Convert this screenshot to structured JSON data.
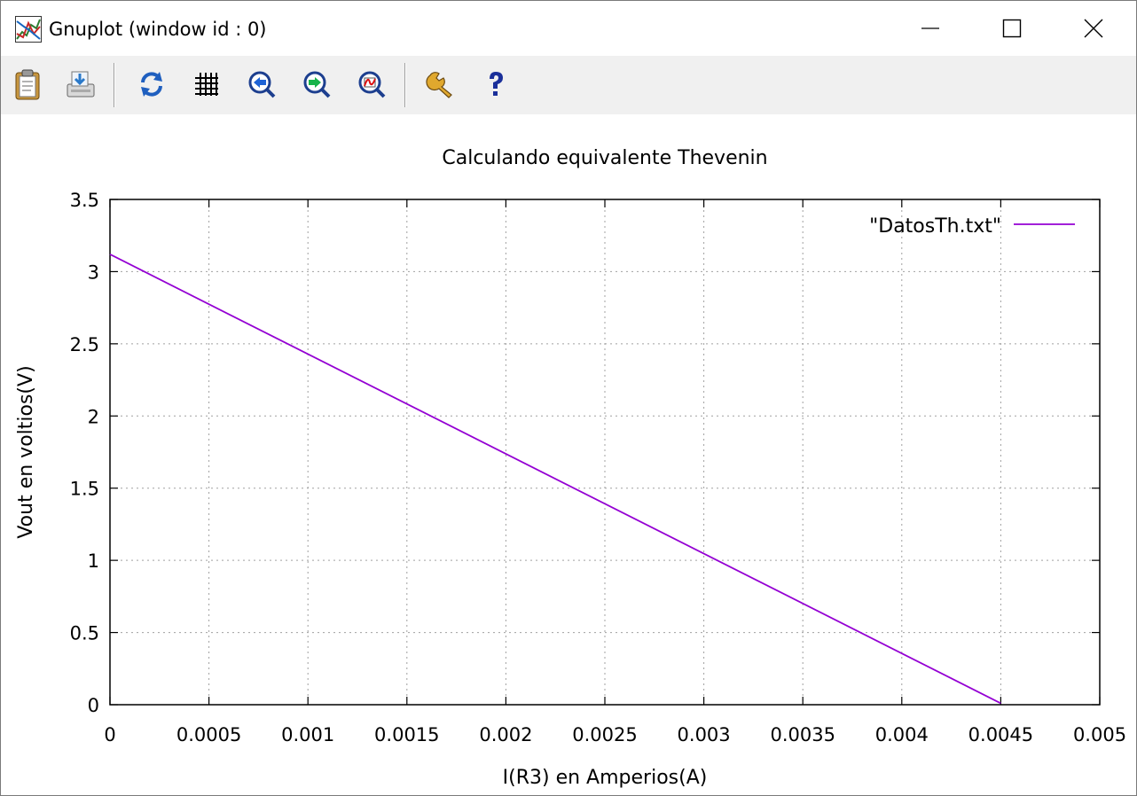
{
  "window": {
    "title": "Gnuplot (window id : 0)"
  },
  "toolbar": {
    "items": [
      {
        "name": "clipboard-icon",
        "tooltip": "Copy to clipboard"
      },
      {
        "name": "print-icon",
        "tooltip": "Print"
      },
      {
        "name": "replot-icon",
        "tooltip": "Replot"
      },
      {
        "name": "grid-icon",
        "tooltip": "Toggle grid"
      },
      {
        "name": "zoom-previous-icon",
        "tooltip": "Previous zoom"
      },
      {
        "name": "zoom-next-icon",
        "tooltip": "Next zoom"
      },
      {
        "name": "autoscale-icon",
        "tooltip": "Autoscale"
      },
      {
        "name": "options-icon",
        "tooltip": "Options"
      },
      {
        "name": "help-icon",
        "tooltip": "Help"
      }
    ]
  },
  "chart_data": {
    "type": "line",
    "title": "Calculando equivalente Thevenin",
    "xlabel": "I(R3) en Amperios(A)",
    "ylabel": "Vout en voltios(V)",
    "xlim": [
      0,
      0.005
    ],
    "ylim": [
      0,
      3.5
    ],
    "x_ticks": [
      "0",
      "0.0005",
      "0.001",
      "0.0015",
      "0.002",
      "0.0025",
      "0.003",
      "0.0035",
      "0.004",
      "0.0045",
      "0.005"
    ],
    "y_ticks": [
      "0",
      "0.5",
      "1",
      "1.5",
      "2",
      "2.5",
      "3",
      "3.5"
    ],
    "grid": true,
    "legend_position": "top-right",
    "series": [
      {
        "name": "\"DatosTh.txt\"",
        "color": "#9400d3",
        "x": [
          0,
          0.0045
        ],
        "y": [
          3.12,
          0.01
        ]
      }
    ]
  }
}
